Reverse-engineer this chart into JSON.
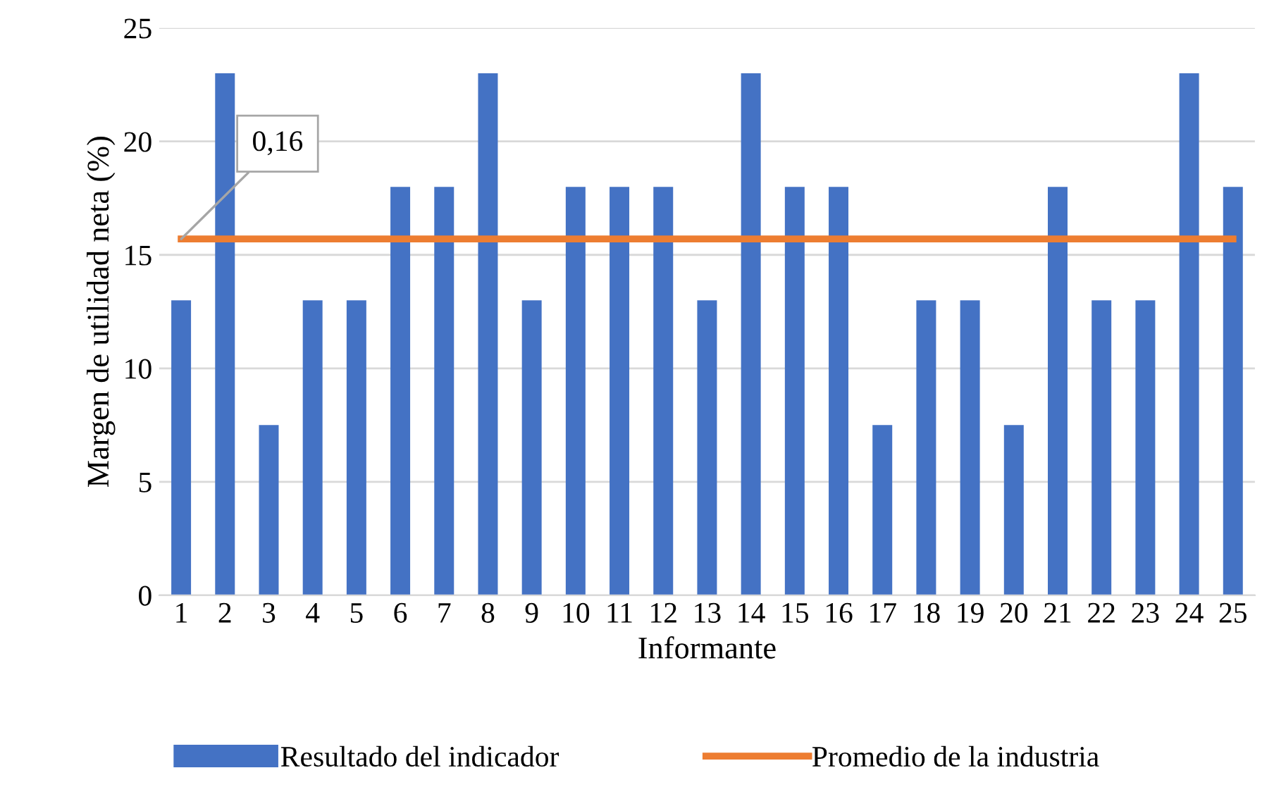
{
  "chart_data": {
    "type": "bar",
    "xlabel": "Informante",
    "ylabel": "Margen de utilidad neta (%)",
    "categories": [
      "1",
      "2",
      "3",
      "4",
      "5",
      "6",
      "7",
      "8",
      "9",
      "10",
      "11",
      "12",
      "13",
      "14",
      "15",
      "16",
      "17",
      "18",
      "19",
      "20",
      "21",
      "22",
      "23",
      "24",
      "25"
    ],
    "series": [
      {
        "name": "Resultado del indicador",
        "color": "#4472c4",
        "values": [
          13,
          23,
          7.5,
          13,
          13,
          18,
          18,
          23,
          13,
          18,
          18,
          18,
          13,
          23,
          18,
          18,
          7.5,
          13,
          13,
          7.5,
          18,
          13,
          13,
          23,
          18
        ]
      },
      {
        "name": "Promedio de la industria",
        "color": "#ed7d31",
        "type": "line",
        "values": [
          15.7,
          15.7,
          15.7,
          15.7,
          15.7,
          15.7,
          15.7,
          15.7,
          15.7,
          15.7,
          15.7,
          15.7,
          15.7,
          15.7,
          15.7,
          15.7,
          15.7,
          15.7,
          15.7,
          15.7,
          15.7,
          15.7,
          15.7,
          15.7,
          15.7
        ]
      }
    ],
    "annotations": [
      {
        "text": "0,16",
        "x": "1",
        "y": 15.7
      }
    ],
    "ylim": [
      0,
      25
    ],
    "yticks": [
      0,
      5,
      10,
      15,
      20,
      25
    ],
    "grid": "y",
    "legend": "bottom"
  }
}
